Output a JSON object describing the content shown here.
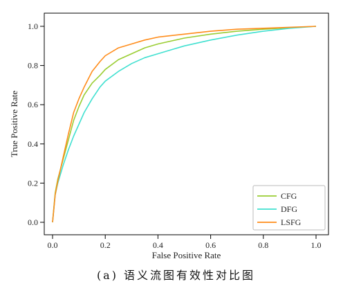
{
  "chart_data": {
    "type": "line",
    "title": "",
    "xlabel": "False Positive Rate",
    "ylabel": "True Positive Rate",
    "xlim": [
      0,
      1
    ],
    "ylim": [
      0,
      1
    ],
    "x_ticks": [
      "0.0",
      "0.2",
      "0.4",
      "0.6",
      "0.8",
      "1.0"
    ],
    "y_ticks": [
      "0.0",
      "0.2",
      "0.4",
      "0.6",
      "0.8",
      "1.0"
    ],
    "grid": false,
    "legend_position": "bottom-right",
    "series": [
      {
        "name": "CFG",
        "color": "#9acd32",
        "x": [
          0,
          0.01,
          0.02,
          0.04,
          0.06,
          0.08,
          0.1,
          0.12,
          0.15,
          0.18,
          0.2,
          0.25,
          0.3,
          0.35,
          0.4,
          0.5,
          0.6,
          0.7,
          0.8,
          0.9,
          1.0
        ],
        "y": [
          0,
          0.15,
          0.22,
          0.32,
          0.42,
          0.52,
          0.59,
          0.65,
          0.71,
          0.75,
          0.78,
          0.83,
          0.86,
          0.89,
          0.91,
          0.94,
          0.96,
          0.975,
          0.985,
          0.993,
          1.0
        ]
      },
      {
        "name": "DFG",
        "color": "#40e0d0",
        "x": [
          0,
          0.01,
          0.02,
          0.04,
          0.06,
          0.08,
          0.1,
          0.12,
          0.15,
          0.18,
          0.2,
          0.25,
          0.3,
          0.35,
          0.4,
          0.5,
          0.6,
          0.7,
          0.8,
          0.9,
          1.0
        ],
        "y": [
          0,
          0.14,
          0.2,
          0.29,
          0.37,
          0.44,
          0.5,
          0.56,
          0.63,
          0.69,
          0.72,
          0.77,
          0.81,
          0.84,
          0.86,
          0.9,
          0.93,
          0.955,
          0.975,
          0.99,
          1.0
        ]
      },
      {
        "name": "LSFG",
        "color": "#ff8c1a",
        "x": [
          0,
          0.01,
          0.02,
          0.04,
          0.06,
          0.08,
          0.1,
          0.12,
          0.15,
          0.18,
          0.2,
          0.25,
          0.3,
          0.35,
          0.4,
          0.5,
          0.6,
          0.7,
          0.8,
          0.9,
          1.0
        ],
        "y": [
          0,
          0.14,
          0.21,
          0.33,
          0.45,
          0.56,
          0.63,
          0.69,
          0.77,
          0.82,
          0.85,
          0.89,
          0.91,
          0.93,
          0.945,
          0.96,
          0.975,
          0.985,
          0.99,
          0.995,
          1.0
        ]
      }
    ]
  },
  "caption": "(a) 语义流图有效性对比图"
}
